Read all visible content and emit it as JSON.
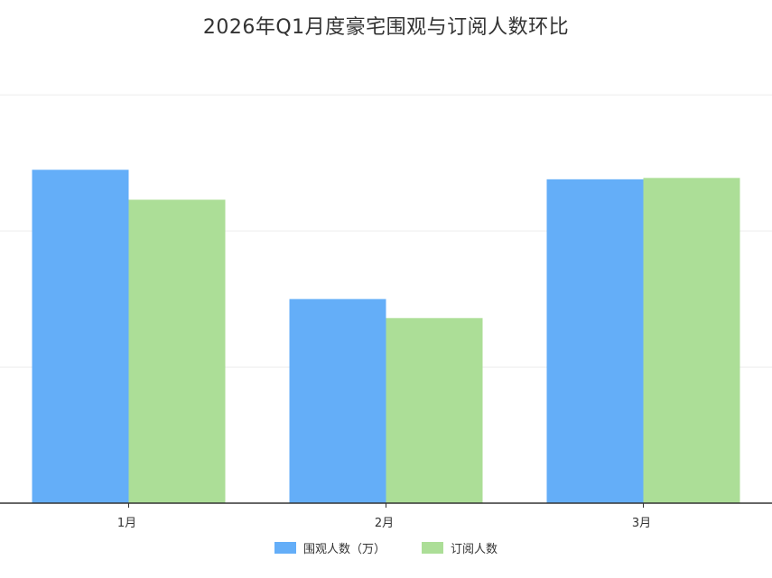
{
  "chart_data": {
    "type": "bar",
    "title": "2026年Q1月度豪宅围观与订阅人数环比",
    "categories": [
      "1月",
      "2月",
      "3月"
    ],
    "series": [
      {
        "name": "围观人数（万）",
        "color": "#64aef8",
        "values": [
          24.5,
          15.0,
          23.8
        ]
      },
      {
        "name": "订阅人数",
        "color": "#acde97",
        "values": [
          22.3,
          13.6,
          23.9
        ]
      }
    ],
    "ylim": [
      0,
      33
    ],
    "xlabel": "",
    "ylabel": "",
    "grid": true,
    "legend_position": "bottom"
  }
}
